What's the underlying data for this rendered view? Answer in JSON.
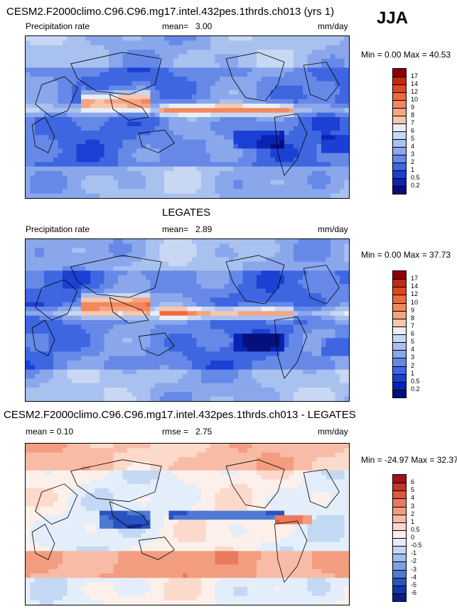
{
  "season": "JJA",
  "panels": [
    {
      "title": "CESM2.F2000climo.C96.C96.mg17.intel.432pes.1thrds.ch013 (yrs 1)",
      "left_label": "Precipitation rate",
      "mean_label": "mean=",
      "mean_value": "3.00",
      "units": "mm/day",
      "minmax": "Min =   0.00 Max =  40.53",
      "colorbar_labels": [
        "17",
        "14",
        "12",
        "10",
        "9",
        "8",
        "7",
        "6",
        "5",
        "4",
        "3",
        "2",
        "1",
        "0.5",
        "0.2"
      ],
      "colorbar_colors": [
        "#8b0000",
        "#c4290d",
        "#e0461c",
        "#ef6a3a",
        "#f3885c",
        "#f5a584",
        "#f8c6ae",
        "#e9eef6",
        "#c8d8f2",
        "#a9c1ef",
        "#8aa7ec",
        "#6689e8",
        "#3e66e0",
        "#1c3fd4",
        "#0b23b4",
        "#06107c"
      ],
      "field": "model"
    },
    {
      "title": "LEGATES",
      "left_label": "Precipitation rate",
      "mean_label": "mean=",
      "mean_value": "2.89",
      "units": "mm/day",
      "minmax": "Min =   0.00 Max =  37.73",
      "colorbar_labels": [
        "17",
        "14",
        "12",
        "10",
        "9",
        "8",
        "7",
        "6",
        "5",
        "4",
        "3",
        "2",
        "1",
        "0.5",
        "0.2"
      ],
      "colorbar_colors": [
        "#8b0000",
        "#c4290d",
        "#e0461c",
        "#ef6a3a",
        "#f3885c",
        "#f5a584",
        "#f8c6ae",
        "#e9eef6",
        "#c8d8f2",
        "#a9c1ef",
        "#8aa7ec",
        "#6689e8",
        "#3e66e0",
        "#1c3fd4",
        "#0b23b4",
        "#06107c"
      ],
      "field": "obs"
    },
    {
      "title": "CESM2.F2000climo.C96.C96.mg17.intel.432pes.1thrds.ch013 - LEGATES",
      "left_label": "mean =   0.10",
      "mean_label": "rmse =",
      "mean_value": "2.75",
      "units": "mm/day",
      "minmax": "Min = -24.97 Max =  32.37",
      "colorbar_labels": [
        "6",
        "5",
        "4",
        "3",
        "2",
        "1",
        "0.5",
        "0",
        "-0.5",
        "-1",
        "-2",
        "-3",
        "-4",
        "-5",
        "-6"
      ],
      "colorbar_colors": [
        "#a50f15",
        "#c9302c",
        "#dd5640",
        "#ea7a5c",
        "#f39d80",
        "#f8bca6",
        "#fbd9cb",
        "#fdf0ea",
        "#e3eefa",
        "#c3d8f3",
        "#9fbeeb",
        "#7aa1e1",
        "#4f7ad3",
        "#2a52c0",
        "#1436a6",
        "#0a1f86"
      ],
      "field": "diff"
    }
  ]
}
